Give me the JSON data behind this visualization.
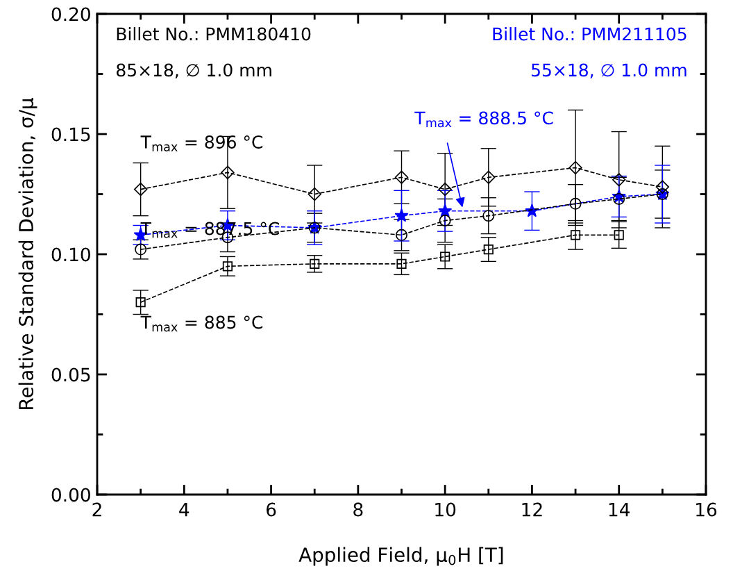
{
  "chart_data": {
    "type": "line",
    "xlabel": "Applied Field, μ$_{0}$H [T]",
    "ylabel": "Relative Standard Deviation, σ/μ",
    "xlim": [
      2,
      16
    ],
    "xticks": [
      2,
      4,
      6,
      8,
      10,
      12,
      14,
      16
    ],
    "ylim": [
      0,
      0.2
    ],
    "yticks": [
      {
        "value": 0,
        "label": "0.00"
      },
      {
        "value": 0.05,
        "label": "0.05"
      },
      {
        "value": 0.1,
        "label": "0.10"
      },
      {
        "value": 0.15,
        "label": "0.15"
      },
      {
        "value": 0.2,
        "label": "0.20"
      }
    ],
    "grid": false,
    "legend": false,
    "line_style": "dashed",
    "annotations": [
      "Billet No.: PMM180410",
      "85×18, ∅ 1.0 mm",
      "Billet No.: PMM211105",
      "55×18, ∅ 1.0 mm"
    ],
    "series": [
      {
        "name": "T$_{max}$ = 896 °C",
        "color": "#000000",
        "marker": "diamond",
        "x": [
          3,
          5,
          7,
          9,
          10,
          11,
          13,
          14,
          15
        ],
        "values": [
          0.127,
          0.134,
          0.125,
          0.132,
          0.127,
          0.132,
          0.136,
          0.131,
          0.128
        ],
        "errors": [
          0.011,
          0.015,
          0.012,
          0.011,
          0.015,
          0.012,
          0.024,
          0.02,
          0.017
        ]
      },
      {
        "name": "T$_{max}$ = 887.5 °C",
        "color": "#000000",
        "marker": "circle",
        "x": [
          3,
          5,
          7,
          9,
          10,
          11,
          13,
          14,
          15
        ],
        "values": [
          0.102,
          0.107,
          0.111,
          0.108,
          0.114,
          0.116,
          0.121,
          0.123,
          0.125
        ],
        "errors": [
          0.004,
          0.006,
          0.006,
          0.0065,
          0.009,
          0.0075,
          0.008,
          0.009,
          0.01
        ]
      },
      {
        "name": "T$_{max}$ = 885 °C",
        "color": "#000000",
        "marker": "square",
        "x": [
          3,
          5,
          7,
          9,
          10,
          11,
          13,
          14
        ],
        "values": [
          0.08,
          0.095,
          0.096,
          0.096,
          0.099,
          0.102,
          0.108,
          0.108
        ],
        "errors": [
          0.005,
          0.004,
          0.0035,
          0.0045,
          0.005,
          0.005,
          0.006,
          0.0055
        ]
      },
      {
        "name": "T$_{max}$ = 888.5 °C",
        "color": "#0000ff",
        "marker": "star",
        "x": [
          3,
          5,
          7,
          9,
          10,
          12,
          14,
          15
        ],
        "values": [
          0.108,
          0.112,
          0.111,
          0.116,
          0.118,
          0.118,
          0.124,
          0.125
        ],
        "errors": [
          0.004,
          0.006,
          0.007,
          0.0105,
          0.0085,
          0.008,
          0.0085,
          0.012
        ]
      }
    ]
  }
}
